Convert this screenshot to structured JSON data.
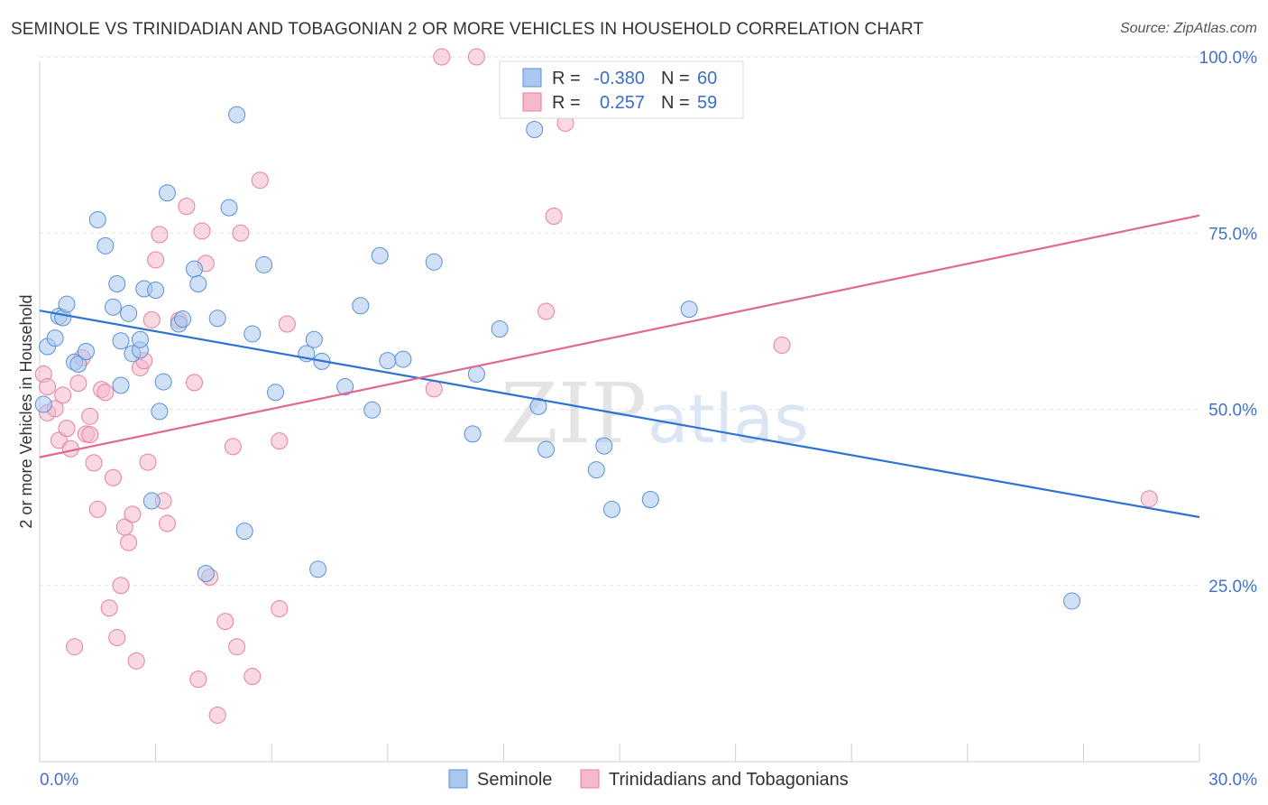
{
  "title": "SEMINOLE VS TRINIDADIAN AND TOBAGONIAN 2 OR MORE VEHICLES IN HOUSEHOLD CORRELATION CHART",
  "source": "Source: ZipAtlas.com",
  "watermark": {
    "zip": "ZIP",
    "atlas": "atlas"
  },
  "legend_stats": [
    {
      "r_label": "R =",
      "r_value": "-0.380",
      "n_label": "N =",
      "n_value": "60"
    },
    {
      "r_label": "R =",
      "r_value": "0.257",
      "n_label": "N =",
      "n_value": "59"
    }
  ],
  "chart_data": {
    "type": "scatter",
    "title": "SEMINOLE VS TRINIDADIAN AND TOBAGONIAN 2 OR MORE VEHICLES IN HOUSEHOLD CORRELATION CHART",
    "xlabel": "",
    "ylabel": "2 or more Vehicles in Household",
    "xlim": [
      0,
      30
    ],
    "ylim": [
      0,
      105
    ],
    "x_tick_labels": [
      "0.0%",
      "30.0%"
    ],
    "y_ticks": [
      25,
      50,
      75,
      100
    ],
    "y_tick_labels": [
      "25.0%",
      "50.0%",
      "75.0%",
      "100.0%"
    ],
    "grid": true,
    "legend_position": "bottom",
    "colors": {
      "Seminole": {
        "fill": "#a9c8f0",
        "stroke": "#5b8fd6",
        "line": "#2e72d2"
      },
      "Trinidadians and Tobagonians": {
        "fill": "#f6b8cb",
        "stroke": "#e67fa0",
        "line": "#e06990"
      }
    },
    "series": [
      {
        "name": "Seminole",
        "trend": {
          "x": [
            0,
            30
          ],
          "y": [
            64.0,
            34.7
          ]
        },
        "points": [
          [
            0.2,
            58.9
          ],
          [
            0.4,
            60.1
          ],
          [
            0.5,
            63.2
          ],
          [
            0.6,
            63.0
          ],
          [
            0.7,
            64.9
          ],
          [
            0.9,
            56.7
          ],
          [
            1.0,
            56.4
          ],
          [
            1.2,
            58.2
          ],
          [
            1.5,
            76.9
          ],
          [
            1.7,
            73.2
          ],
          [
            1.9,
            64.5
          ],
          [
            2.0,
            67.8
          ],
          [
            2.1,
            53.4
          ],
          [
            2.1,
            59.7
          ],
          [
            2.3,
            63.6
          ],
          [
            2.4,
            57.9
          ],
          [
            2.6,
            58.4
          ],
          [
            2.6,
            59.9
          ],
          [
            2.7,
            67.1
          ],
          [
            2.9,
            37.0
          ],
          [
            3.0,
            66.9
          ],
          [
            3.1,
            49.7
          ],
          [
            3.2,
            53.9
          ],
          [
            3.3,
            80.7
          ],
          [
            3.6,
            62.1
          ],
          [
            4.0,
            69.9
          ],
          [
            4.1,
            67.8
          ],
          [
            4.3,
            26.7
          ],
          [
            4.6,
            62.9
          ],
          [
            4.9,
            78.6
          ],
          [
            5.1,
            91.8
          ],
          [
            5.3,
            32.7
          ],
          [
            5.5,
            60.7
          ],
          [
            5.8,
            70.5
          ],
          [
            6.1,
            52.4
          ],
          [
            6.9,
            57.9
          ],
          [
            7.1,
            59.9
          ],
          [
            7.2,
            27.3
          ],
          [
            7.3,
            56.8
          ],
          [
            7.9,
            53.2
          ],
          [
            8.3,
            64.7
          ],
          [
            8.6,
            49.9
          ],
          [
            8.8,
            71.8
          ],
          [
            9.0,
            56.9
          ],
          [
            9.4,
            57.1
          ],
          [
            10.2,
            70.9
          ],
          [
            11.2,
            46.5
          ],
          [
            11.3,
            55.0
          ],
          [
            11.9,
            61.4
          ],
          [
            12.8,
            89.7
          ],
          [
            12.9,
            50.4
          ],
          [
            13.1,
            44.3
          ],
          [
            14.4,
            41.4
          ],
          [
            14.6,
            44.8
          ],
          [
            14.8,
            35.8
          ],
          [
            15.8,
            37.2
          ],
          [
            16.8,
            64.2
          ],
          [
            26.7,
            22.8
          ],
          [
            0.1,
            50.7
          ],
          [
            3.7,
            62.8
          ]
        ]
      },
      {
        "name": "Trinidadians and Tobagonians",
        "trend": {
          "x": [
            0,
            30
          ],
          "y": [
            43.2,
            77.5
          ]
        },
        "points": [
          [
            0.1,
            55.0
          ],
          [
            0.2,
            49.5
          ],
          [
            0.2,
            53.2
          ],
          [
            0.4,
            50.1
          ],
          [
            0.5,
            45.6
          ],
          [
            0.6,
            52.0
          ],
          [
            0.7,
            47.3
          ],
          [
            0.8,
            44.4
          ],
          [
            0.9,
            16.3
          ],
          [
            1.0,
            53.7
          ],
          [
            1.1,
            57.3
          ],
          [
            1.2,
            46.5
          ],
          [
            1.3,
            49.0
          ],
          [
            1.3,
            46.4
          ],
          [
            1.4,
            42.4
          ],
          [
            1.5,
            35.8
          ],
          [
            1.6,
            52.8
          ],
          [
            1.7,
            52.4
          ],
          [
            1.8,
            21.8
          ],
          [
            1.9,
            40.3
          ],
          [
            2.0,
            17.6
          ],
          [
            2.1,
            25.0
          ],
          [
            2.2,
            33.3
          ],
          [
            2.3,
            31.1
          ],
          [
            2.4,
            35.1
          ],
          [
            2.5,
            14.3
          ],
          [
            2.6,
            55.9
          ],
          [
            2.7,
            56.9
          ],
          [
            2.8,
            42.5
          ],
          [
            2.9,
            62.7
          ],
          [
            3.0,
            71.2
          ],
          [
            3.1,
            74.8
          ],
          [
            3.2,
            37.0
          ],
          [
            3.3,
            33.8
          ],
          [
            3.6,
            62.6
          ],
          [
            3.8,
            78.8
          ],
          [
            4.0,
            53.8
          ],
          [
            4.1,
            11.7
          ],
          [
            4.2,
            75.3
          ],
          [
            4.3,
            70.7
          ],
          [
            4.4,
            26.2
          ],
          [
            4.6,
            6.6
          ],
          [
            4.8,
            19.9
          ],
          [
            5.0,
            44.7
          ],
          [
            5.1,
            16.3
          ],
          [
            5.2,
            75.0
          ],
          [
            5.5,
            12.1
          ],
          [
            5.7,
            82.5
          ],
          [
            6.2,
            45.5
          ],
          [
            6.4,
            62.1
          ],
          [
            6.2,
            21.7
          ],
          [
            10.2,
            52.9
          ],
          [
            10.4,
            100.0
          ],
          [
            11.3,
            100.0
          ],
          [
            13.1,
            63.9
          ],
          [
            13.3,
            77.4
          ],
          [
            13.6,
            90.6
          ],
          [
            19.2,
            59.1
          ],
          [
            28.7,
            37.3
          ]
        ]
      }
    ]
  }
}
